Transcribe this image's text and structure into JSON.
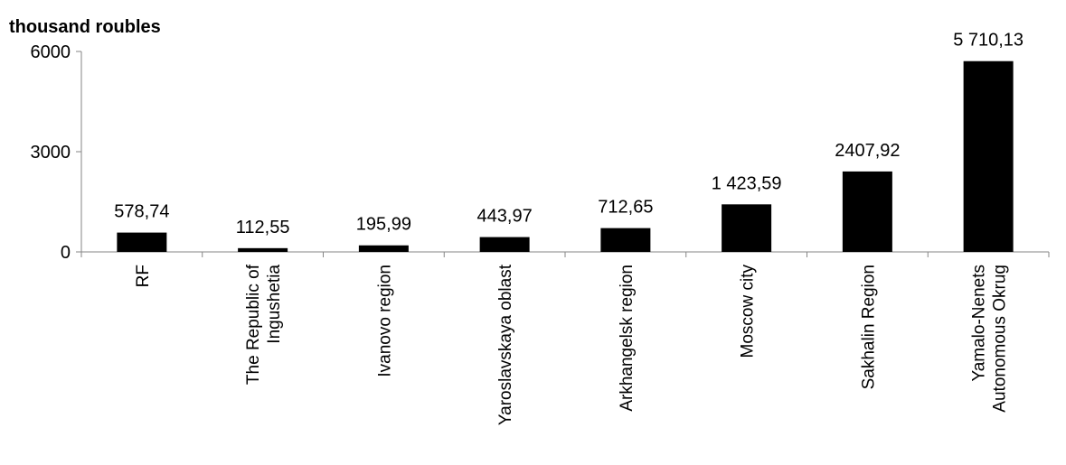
{
  "chart_data": {
    "type": "bar",
    "title": "",
    "unit_label": "thousand roubles",
    "xlabel": "",
    "ylabel": "",
    "ylim": [
      0,
      6000
    ],
    "yticks": [
      0,
      3000,
      6000
    ],
    "ytick_labels": [
      "0",
      "3000",
      "6000"
    ],
    "grid": false,
    "legend": "none",
    "bar_color": "#000000",
    "categories": [
      [
        "RF"
      ],
      [
        "The Republic of",
        "Ingushetia"
      ],
      [
        "Ivanovo region"
      ],
      [
        "Yaroslavskaya oblast"
      ],
      [
        "Arkhangelsk region"
      ],
      [
        "Moscow city"
      ],
      [
        "Sakhalin Region"
      ],
      [
        "Yamalo-Nenets",
        "Autonomous Okrug"
      ]
    ],
    "values": [
      578.74,
      112.55,
      195.99,
      443.97,
      712.65,
      1423.59,
      2407.92,
      5710.13
    ],
    "data_labels": [
      "578,74",
      "112,55",
      "195,99",
      "443,97",
      "712,65",
      "1 423,59",
      "2407,92",
      "5 710,13"
    ]
  }
}
